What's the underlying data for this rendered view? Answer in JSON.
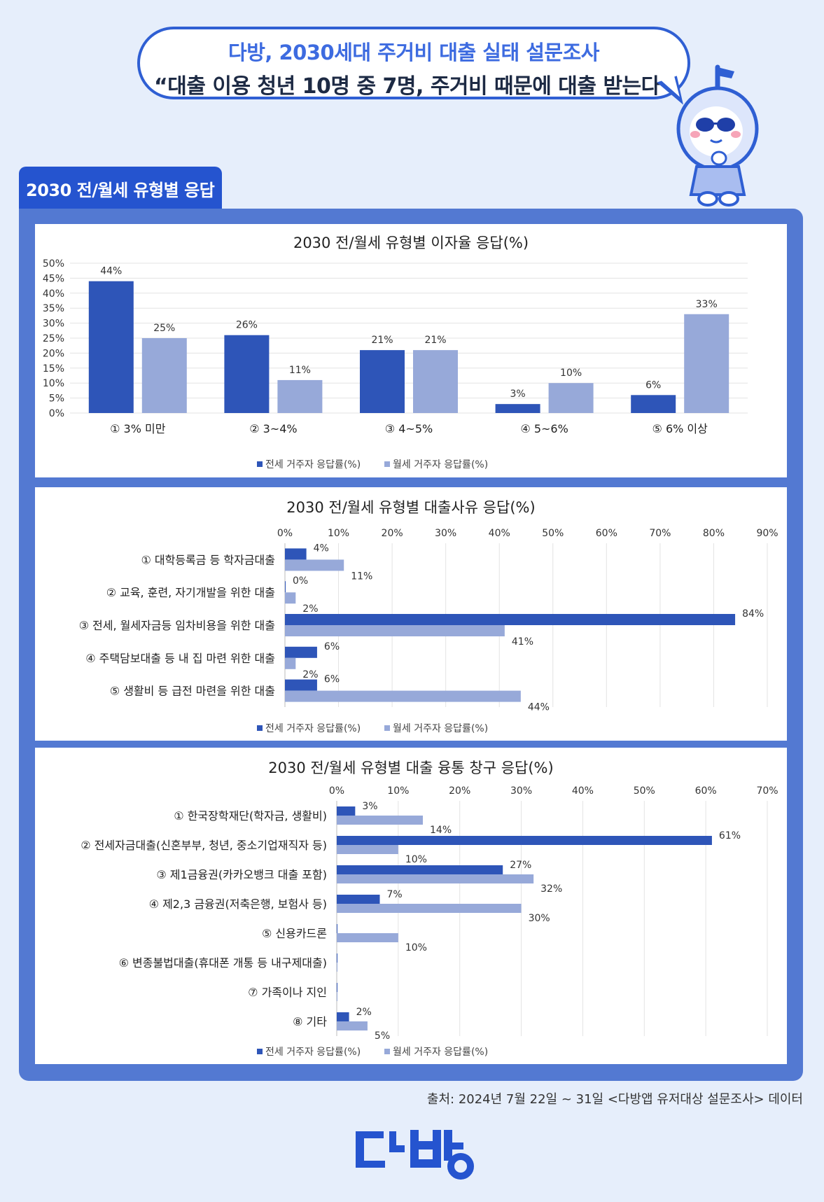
{
  "header": {
    "line1": "다방, 2030세대 주거비 대출 실태 설문조사",
    "line2": "“대출 이용 청년 10명 중 7명, 주거비 때문에 대출 받는다”"
  },
  "section_tab": "2030 전/월세 유형별 응답",
  "source": "출처: 2024년 7월 22일 ~ 31일 <다방앱 유저대상 설문조사> 데이터",
  "brand": {
    "logo_text": "다방",
    "primary_color": "#2554cf",
    "jeonse_color": "#2e55b8",
    "wolse_color": "#97a9d9"
  },
  "chart_data": [
    {
      "type": "bar",
      "title": "2030 전/월세 유형별 이자율 응답(%)",
      "categories": [
        "① 3% 미만",
        "② 3~4%",
        "③ 4~5%",
        "④ 5~6%",
        "⑤ 6% 이상"
      ],
      "series": [
        {
          "name": "전세 거주자 응답률(%)",
          "values": [
            44,
            26,
            21,
            3,
            6
          ],
          "labels": [
            "44%",
            "26%",
            "21%",
            "3%",
            "6%"
          ]
        },
        {
          "name": "월세 거주자 응답률(%)",
          "values": [
            25,
            11,
            21,
            10,
            33
          ],
          "labels": [
            "25%",
            "11%",
            "21%",
            "10%",
            "33%"
          ]
        }
      ],
      "ylim": [
        0,
        50
      ],
      "ticks": [
        "0%",
        "5%",
        "10%",
        "15%",
        "20%",
        "25%",
        "30%",
        "35%",
        "40%",
        "45%",
        "50%"
      ],
      "legend": "bottom"
    },
    {
      "type": "bar",
      "orientation": "horizontal",
      "title": "2030 전/월세 유형별 대출사유 응답(%)",
      "categories": [
        "① 대학등록금 등 학자금대출",
        "② 교육, 훈련, 자기개발을 위한 대출",
        "③ 전세, 월세자금등 임차비용을 위한 대출",
        "④ 주택담보대출 등 내 집 마련 위한 대출",
        "⑤ 생활비 등 급전 마련을 위한 대출"
      ],
      "series": [
        {
          "name": "전세 거주자 응답률(%)",
          "values": [
            4,
            0,
            84,
            6,
            6
          ],
          "labels": [
            "4%",
            "0%",
            "84%",
            "6%",
            "6%"
          ]
        },
        {
          "name": "월세 거주자 응답률(%)",
          "values": [
            11,
            2,
            41,
            2,
            44
          ],
          "labels": [
            "11%",
            "2%",
            "41%",
            "2%",
            "44%"
          ]
        }
      ],
      "xlim": [
        0,
        90
      ],
      "ticks": [
        "0%",
        "10%",
        "20%",
        "30%",
        "40%",
        "50%",
        "60%",
        "70%",
        "80%",
        "90%"
      ],
      "legend": "bottom"
    },
    {
      "type": "bar",
      "orientation": "horizontal",
      "title": "2030 전/월세 유형별 대출 융통 창구 응답(%)",
      "categories": [
        "① 한국장학재단(학자금, 생활비)",
        "② 전세자금대출(신혼부부, 청년, 중소기업재직자 등)",
        "③ 제1금융권(카카오뱅크 대출 포함)",
        "④ 제2,3 금융권(저축은행, 보험사 등)",
        "⑤ 신용카드론",
        "⑥ 변종불법대출(휴대폰 개통 등 내구제대출)",
        "⑦ 가족이나 지인",
        "⑧ 기타"
      ],
      "series": [
        {
          "name": "전세 거주자 응답률(%)",
          "values": [
            3,
            61,
            27,
            7,
            0,
            0,
            0,
            2
          ],
          "labels": [
            "3%",
            "61%",
            "27%",
            "7%",
            "",
            "",
            "",
            "2%"
          ]
        },
        {
          "name": "월세 거주자 응답률(%)",
          "values": [
            14,
            10,
            32,
            30,
            10,
            0,
            0,
            5
          ],
          "labels": [
            "14%",
            "10%",
            "32%",
            "30%",
            "10%",
            "",
            "",
            "5%"
          ]
        }
      ],
      "xlim": [
        0,
        70
      ],
      "ticks": [
        "0%",
        "10%",
        "20%",
        "30%",
        "40%",
        "50%",
        "60%",
        "70%"
      ],
      "legend": "bottom"
    }
  ]
}
